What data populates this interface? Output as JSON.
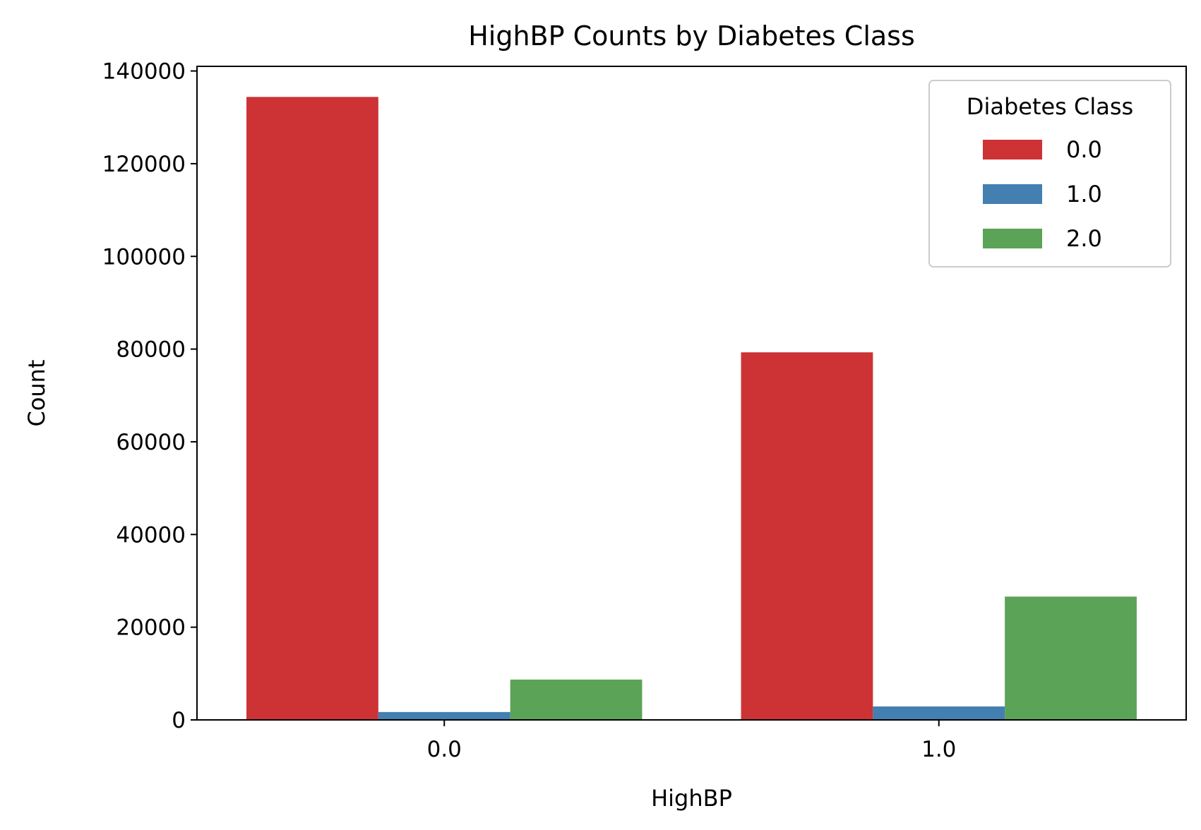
{
  "chart_data": {
    "type": "bar",
    "title": "HighBP Counts by Diabetes Class",
    "xlabel": "HighBP",
    "ylabel": "Count",
    "categories": [
      "0.0",
      "1.0"
    ],
    "ylim": [
      0,
      141000
    ],
    "yticks": [
      0,
      20000,
      40000,
      60000,
      80000,
      100000,
      120000,
      140000
    ],
    "grid": false,
    "legend": {
      "title": "Diabetes Class",
      "placement": "top-right"
    },
    "series": [
      {
        "name": "0.0",
        "color": "#cd3235",
        "values": [
          134400,
          79300
        ]
      },
      {
        "name": "1.0",
        "color": "#437fb0",
        "values": [
          1700,
          2900
        ]
      },
      {
        "name": "2.0",
        "color": "#5ba356",
        "values": [
          8700,
          26600
        ]
      }
    ]
  }
}
